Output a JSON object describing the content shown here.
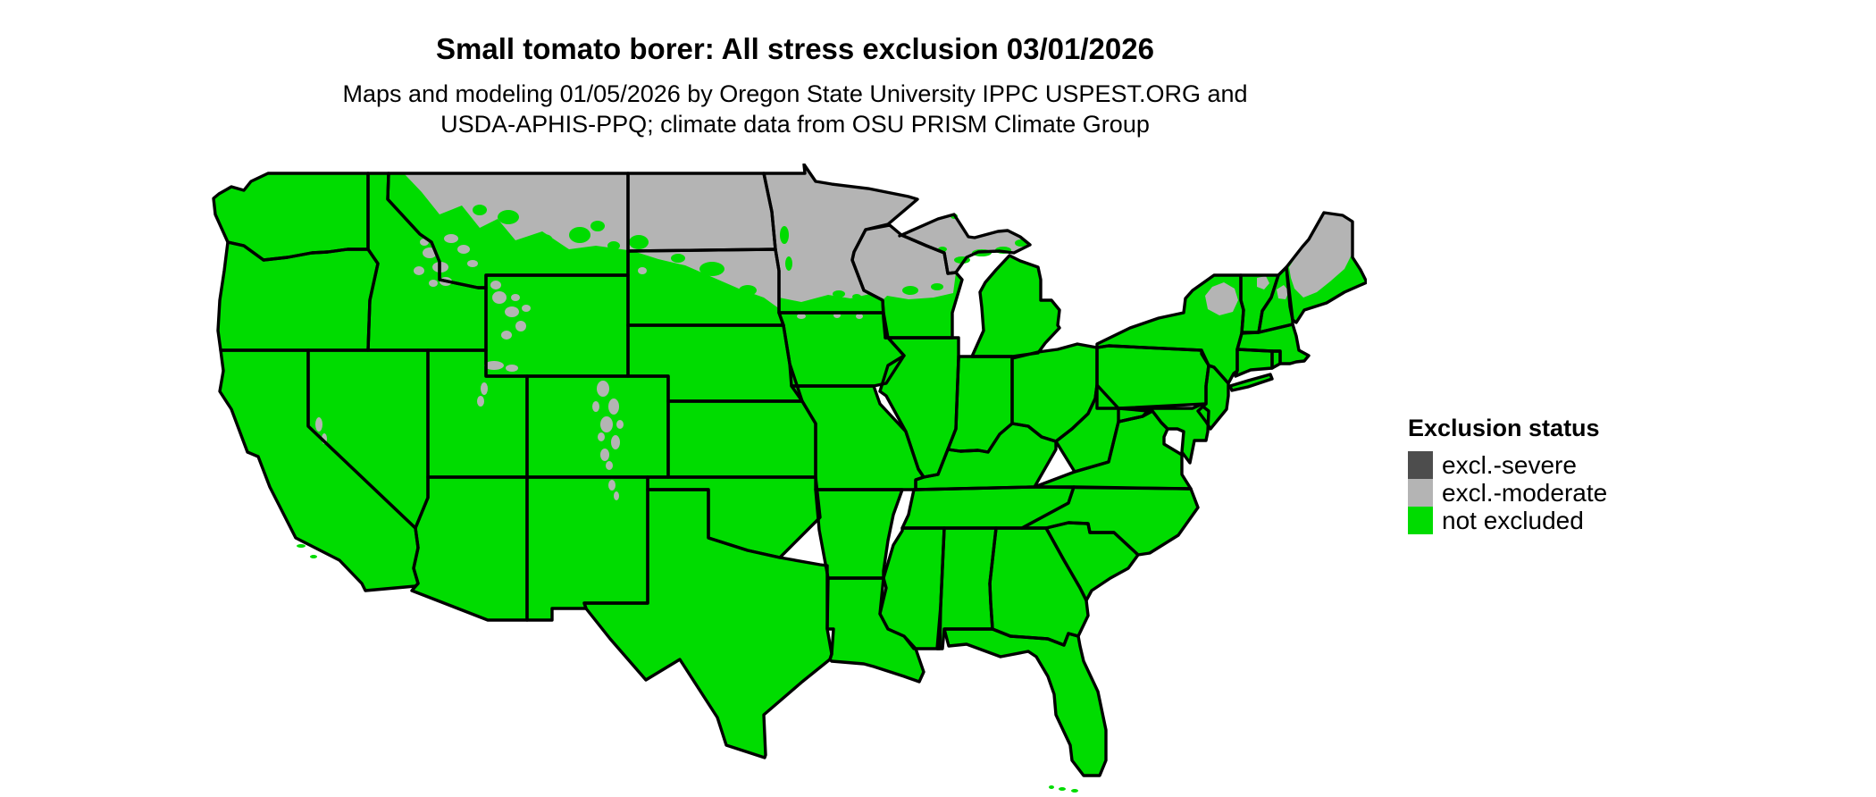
{
  "page": {
    "background": "#FFFFFF"
  },
  "header": {
    "title": "Small tomato borer: All stress exclusion 03/01/2026",
    "subtitle_line1": "Maps and modeling 01/05/2026 by Oregon State University IPPC USPEST.ORG and",
    "subtitle_line2": "USDA-APHIS-PPQ; climate data from OSU PRISM Climate Group"
  },
  "legend": {
    "title": "Exclusion status",
    "items": [
      {
        "label": "excl.-severe",
        "color": "#4D4D4D"
      },
      {
        "label": "excl.-moderate",
        "color": "#B4B4B4"
      },
      {
        "label": "not excluded",
        "color": "#00DC00"
      }
    ]
  },
  "map": {
    "type": "choropleth-us-conus",
    "border_color": "#000000",
    "water_background": "#FFFFFF",
    "not_excluded_color": "#00DC00",
    "excl_moderate_color": "#B4B4B4",
    "excl_severe_color": "#4D4D4D",
    "regions": [
      {
        "area": "North Dakota",
        "status": "excl.-moderate"
      },
      {
        "area": "Minnesota (all except southern edge)",
        "status": "excl.-moderate"
      },
      {
        "area": "Northern Montana",
        "status": "excl.-moderate"
      },
      {
        "area": "Northeastern South Dakota",
        "status": "excl.-moderate"
      },
      {
        "area": "Northern Wisconsin",
        "status": "excl.-moderate"
      },
      {
        "area": "Michigan Upper Peninsula (interior)",
        "status": "excl.-moderate"
      },
      {
        "area": "Interior northern Maine",
        "status": "excl.-moderate"
      },
      {
        "area": "Adirondacks, New York",
        "status": "excl.-moderate"
      },
      {
        "area": "White Mountains, New Hampshire",
        "status": "excl.-moderate"
      },
      {
        "area": "High Rockies patches (ID, WY, UT, CO)",
        "status": "excl.-moderate"
      },
      {
        "area": "Sierra Nevada patches, California",
        "status": "excl.-moderate"
      },
      {
        "area": "Remainder of contiguous United States",
        "status": "not excluded"
      }
    ]
  }
}
